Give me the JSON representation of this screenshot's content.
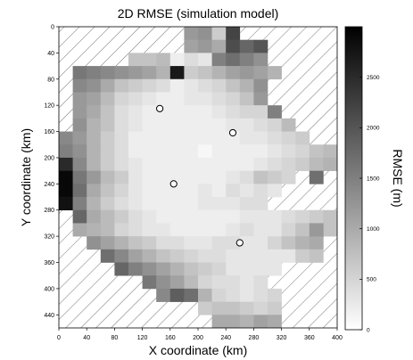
{
  "chart_data": {
    "type": "heatmap",
    "title": "2D RMSE (simulation model)",
    "xlabel": "X coordinate (km)",
    "ylabel": "Y coordinate (km)",
    "colorbar_label": "RMSE (m)",
    "colormap": "white-to-black",
    "color_min": "#ffffff",
    "color_max": "#000000",
    "cell_size_km": 20,
    "x_range": [
      0,
      400
    ],
    "y_range": [
      0,
      460
    ],
    "y_axis_inverted": true,
    "x_ticks": [
      "0",
      "40",
      "80",
      "120",
      "160",
      "200",
      "240",
      "280",
      "320",
      "360",
      "400"
    ],
    "y_ticks": [
      "0",
      "40",
      "80",
      "120",
      "160",
      "200",
      "240",
      "280",
      "320",
      "360",
      "400",
      "440"
    ],
    "colorbar_range": [
      0,
      3000
    ],
    "colorbar_ticks": [
      "0",
      "500",
      "1000",
      "1500",
      "2000",
      "2500"
    ],
    "masked_region": "hatched",
    "stations": [
      {
        "x": 145,
        "y": 125
      },
      {
        "x": 250,
        "y": 162
      },
      {
        "x": 165,
        "y": 240
      },
      {
        "x": 260,
        "y": 330
      }
    ],
    "rows": [
      {
        "y": 0,
        "x0": 180,
        "values": [
          1200,
          1300,
          600,
          2200
        ]
      },
      {
        "y": 20,
        "x0": 180,
        "values": [
          1100,
          1200,
          1000,
          2100,
          1800,
          2000
        ]
      },
      {
        "y": 40,
        "x0": 100,
        "values": [
          700,
          700,
          800,
          200,
          400,
          300,
          1500,
          1700,
          1500,
          1300
        ]
      },
      {
        "y": 60,
        "x0": 20,
        "values": [
          1600,
          1500,
          1400,
          1300,
          1200,
          1100,
          900,
          2700,
          600,
          700,
          900,
          1100,
          1200,
          1100,
          900
        ]
      },
      {
        "y": 80,
        "x0": 20,
        "values": [
          1400,
          1300,
          1000,
          700,
          600,
          500,
          400,
          200,
          300,
          400,
          500,
          700,
          900,
          1300
        ]
      },
      {
        "y": 100,
        "x0": 20,
        "values": [
          1200,
          1100,
          800,
          500,
          400,
          300,
          200,
          200,
          300,
          300,
          400,
          500,
          700,
          1200
        ]
      },
      {
        "y": 120,
        "x0": 20,
        "values": [
          1200,
          1000,
          700,
          400,
          300,
          200,
          200,
          200,
          200,
          200,
          300,
          400,
          500,
          500,
          1500
        ]
      },
      {
        "y": 140,
        "x0": 20,
        "values": [
          1300,
          900,
          700,
          400,
          300,
          200,
          200,
          200,
          200,
          200,
          200,
          300,
          300,
          400,
          500,
          800
        ]
      },
      {
        "y": 160,
        "x0": 0,
        "values": [
          1400,
          1200,
          900,
          600,
          400,
          200,
          200,
          200,
          200,
          200,
          200,
          200,
          200,
          300,
          300,
          400,
          500,
          600
        ]
      },
      {
        "y": 180,
        "x0": 0,
        "values": [
          1500,
          1300,
          900,
          600,
          400,
          200,
          200,
          200,
          200,
          200,
          100,
          200,
          200,
          200,
          200,
          300,
          400,
          500,
          700,
          800,
          1000,
          1500
        ]
      },
      {
        "y": 200,
        "x0": 0,
        "values": [
          2500,
          1400,
          900,
          600,
          400,
          300,
          200,
          200,
          200,
          200,
          200,
          200,
          200,
          200,
          300,
          400,
          500,
          600,
          800,
          900,
          1100,
          1800
        ]
      },
      {
        "y": 220,
        "x0": 0,
        "values": [
          2900,
          1600,
          1200,
          800,
          600,
          300,
          200,
          200,
          200,
          200,
          200,
          200,
          300,
          400,
          700,
          600,
          500
        ]
      },
      {
        "y": 240,
        "x0": 0,
        "values": [
          2900,
          1700,
          1000,
          700,
          500,
          300,
          200,
          200,
          200,
          200,
          300,
          200,
          400,
          300,
          400,
          300
        ]
      },
      {
        "y": 260,
        "x0": 0,
        "values": [
          2800,
          1500,
          900,
          600,
          400,
          300,
          200,
          200,
          200,
          200,
          300,
          300,
          300,
          400,
          400
        ]
      },
      {
        "y": 280,
        "x0": 20,
        "values": [
          1800,
          1000,
          800,
          600,
          400,
          300,
          200,
          200,
          200,
          200,
          200,
          200,
          300,
          300,
          300,
          400,
          500,
          600,
          700
        ]
      },
      {
        "y": 300,
        "x0": 20,
        "values": [
          1000,
          900,
          800,
          500,
          400,
          300,
          300,
          200,
          200,
          200,
          200,
          300,
          400,
          300,
          300,
          500,
          700,
          800,
          700
        ]
      },
      {
        "y": 320,
        "x0": 40,
        "values": [
          1300,
          1100,
          900,
          700,
          600,
          400,
          400,
          300,
          300,
          400,
          400,
          300,
          300,
          500,
          700,
          900,
          1000
        ]
      },
      {
        "y": 340,
        "x0": 60,
        "values": [
          1700,
          1400,
          1100,
          900,
          700,
          600,
          500,
          400,
          400,
          300,
          300,
          300,
          300,
          300,
          600,
          700
        ]
      },
      {
        "y": 360,
        "x0": 80,
        "values": [
          1800,
          1500,
          1300,
          1100,
          900,
          700,
          600,
          500,
          300,
          300,
          300,
          300
        ]
      },
      {
        "y": 380,
        "x0": 120,
        "values": [
          1600,
          1300,
          1100,
          800,
          500,
          400,
          400,
          300,
          400
        ]
      },
      {
        "y": 400,
        "x0": 140,
        "values": [
          1400,
          1900,
          1700,
          900,
          500,
          400,
          300,
          400,
          500
        ]
      },
      {
        "y": 420,
        "x0": 200,
        "values": [
          600,
          700,
          700,
          600,
          500,
          600
        ]
      },
      {
        "y": 440,
        "x0": 220,
        "values": [
          1000,
          1000,
          900,
          1100,
          1000
        ]
      }
    ],
    "extra_cells": [
      {
        "x": 360,
        "y": 220,
        "value": 1700
      },
      {
        "x": 360,
        "y": 300,
        "value": 1200
      }
    ]
  }
}
